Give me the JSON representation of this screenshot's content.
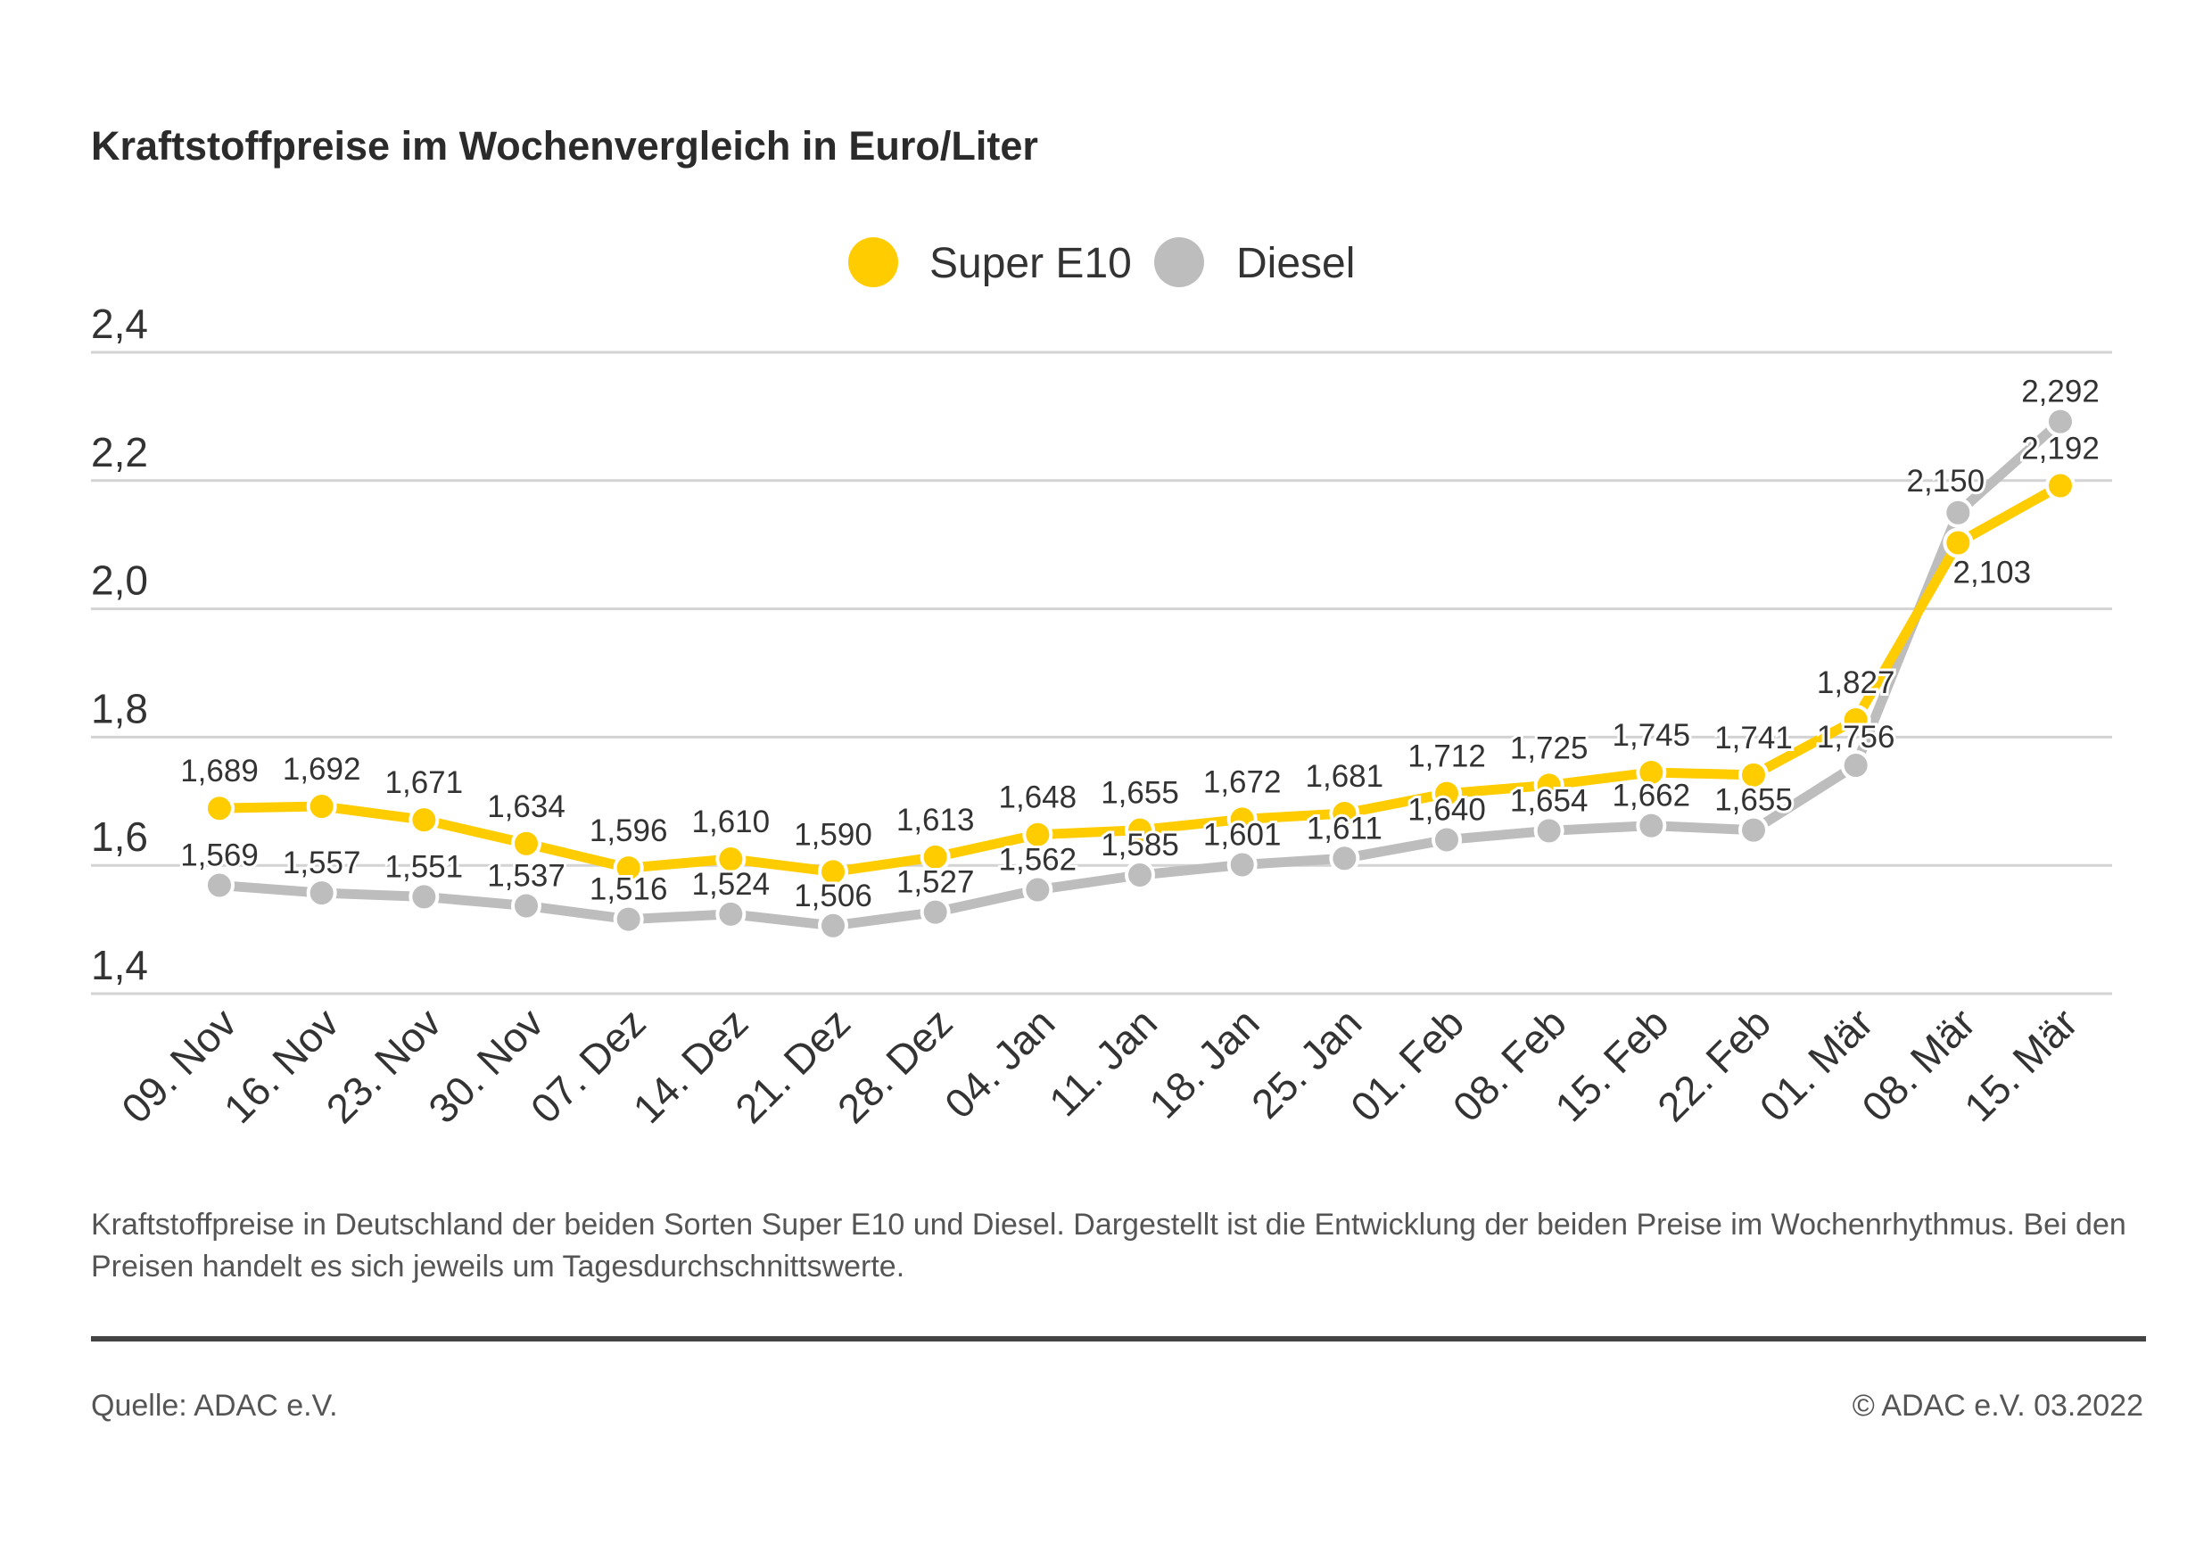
{
  "title": "Kraftstoffpreise im Wochenvergleich in Euro/Liter",
  "description": "Kraftstoffpreise in Deutschland der beiden Sorten Super E10 und Diesel. Dargestellt ist die Entwicklung der beiden Preise im Wochenrhythmus. Bei den Preisen handelt es sich jeweils um Tagesdurchschnittswerte.",
  "source": "Quelle: ADAC e.V.",
  "copyright": "© ADAC e.V. 03.2022",
  "colors": {
    "super_e10": "#FFCC00",
    "diesel": "#BDBDBD",
    "grid": "#D3D3D3",
    "text": "#333333"
  },
  "chart_data": {
    "type": "line",
    "title": "Kraftstoffpreise im Wochenvergleich in Euro/Liter",
    "xlabel": "",
    "ylabel": "",
    "ylim": [
      1.4,
      2.4
    ],
    "yticks": [
      "1,4",
      "1,6",
      "1,8",
      "2,0",
      "2,2",
      "2,4"
    ],
    "grid": true,
    "legend_placement": "top-center",
    "categories": [
      "09. Nov",
      "16. Nov",
      "23. Nov",
      "30. Nov",
      "07. Dez",
      "14. Dez",
      "21. Dez",
      "28. Dez",
      "04. Jan",
      "11. Jan",
      "18. Jan",
      "25. Jan",
      "01. Feb",
      "08. Feb",
      "15. Feb",
      "22. Feb",
      "01. Mär",
      "08. Mär",
      "15. Mär"
    ],
    "series": [
      {
        "name": "Super E10",
        "color": "#FFCC00",
        "values": [
          1.689,
          1.692,
          1.671,
          1.634,
          1.596,
          1.61,
          1.59,
          1.613,
          1.648,
          1.655,
          1.672,
          1.681,
          1.712,
          1.725,
          1.745,
          1.741,
          1.827,
          2.103,
          2.192
        ],
        "labels": [
          "1,689",
          "1,692",
          "1,671",
          "1,634",
          "1,596",
          "1,610",
          "1,590",
          "1,613",
          "1,648",
          "1,655",
          "1,672",
          "1,681",
          "1,712",
          "1,725",
          "1,745",
          "1,741",
          "1,827",
          "2,103",
          "2,192"
        ]
      },
      {
        "name": "Diesel",
        "color": "#BDBDBD",
        "values": [
          1.569,
          1.557,
          1.551,
          1.537,
          1.516,
          1.524,
          1.506,
          1.527,
          1.562,
          1.585,
          1.601,
          1.611,
          1.64,
          1.654,
          1.662,
          1.655,
          1.756,
          2.15,
          2.292
        ],
        "labels": [
          "1,569",
          "1,557",
          "1,551",
          "1,537",
          "1,516",
          "1,524",
          "1,506",
          "1,527",
          "1,562",
          "1,585",
          "1,601",
          "1,611",
          "1,640",
          "1,654",
          "1,662",
          "1,655",
          "1,756",
          "2,150",
          "2,292"
        ]
      }
    ]
  }
}
